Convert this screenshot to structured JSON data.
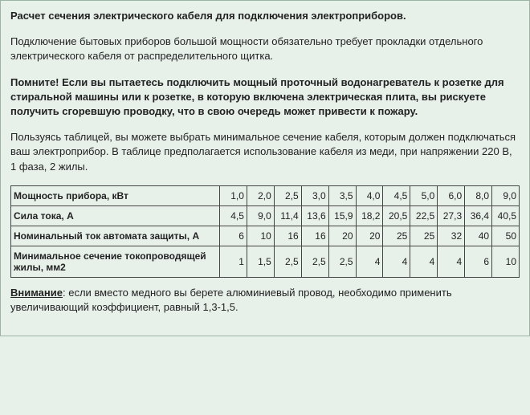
{
  "title": "Расчет сечения электрического кабеля для подключения электроприборов.",
  "para1": "Подключение бытовых приборов большой мощности обязательно требует прокладки отдельного электрического кабеля от распределительного щитка.",
  "para2": "Помните! Если вы пытаетесь подключить мощный проточный водонагреватель к розетке для стиральной машины или к розетке, в которую включена электрическая плита, вы рискуете получить сгоревшую проводку, что в свою очередь может привести к пожару.",
  "para3": "Пользуясь таблицей, вы можете выбрать минимальное сечение кабеля, которым должен подключаться ваш электроприбор. В таблице предполагается использование кабеля из меди, при напряжении 220 В, 1 фаза, 2 жилы.",
  "table": {
    "rows": [
      {
        "label": "Мощность прибора, кВт",
        "cells": [
          "1,0",
          "2,0",
          "2,5",
          "3,0",
          "3,5",
          "4,0",
          "4,5",
          "5,0",
          "6,0",
          "8,0",
          "9,0"
        ]
      },
      {
        "label": "Сила тока, А",
        "cells": [
          "4,5",
          "9,0",
          "11,4",
          "13,6",
          "15,9",
          "18,2",
          "20,5",
          "22,5",
          "27,3",
          "36,4",
          "40,5"
        ]
      },
      {
        "label": "Номинальный ток автомата защиты, А",
        "cells": [
          "6",
          "10",
          "16",
          "16",
          "20",
          "20",
          "25",
          "25",
          "32",
          "40",
          "50"
        ]
      },
      {
        "label": "Минимальное сечение токопроводящей жилы, мм2",
        "cells": [
          "1",
          "1,5",
          "2,5",
          "2,5",
          "2,5",
          "4",
          "4",
          "4",
          "4",
          "6",
          "10"
        ]
      }
    ]
  },
  "note_label": "Внимание",
  "note_text": ": если вместо медного вы берете алюминиевый провод, необходимо применить увеличивающий коэффициент, равный 1,3-1,5."
}
